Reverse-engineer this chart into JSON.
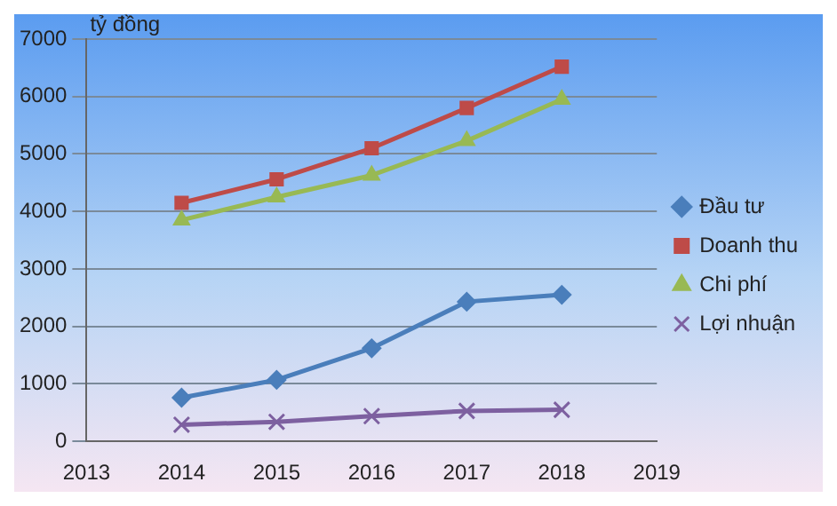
{
  "chart_data": {
    "type": "line",
    "ylabel": "tỷ đồng",
    "x": [
      2014,
      2015,
      2016,
      2017,
      2018
    ],
    "xlim": [
      2013,
      2019
    ],
    "xticks": [
      2013,
      2014,
      2015,
      2016,
      2017,
      2018,
      2019
    ],
    "ylim": [
      0,
      7000
    ],
    "yticks": [
      0,
      1000,
      2000,
      3000,
      4000,
      5000,
      6000,
      7000
    ],
    "grid": "y",
    "legend": "right",
    "line_style": "solid",
    "series": [
      {
        "name": "Đầu tư",
        "color": "#4a7ebb",
        "marker": "diamond",
        "values": [
          760,
          1070,
          1620,
          2430,
          2550
        ]
      },
      {
        "name": "Doanh thu",
        "color": "#be4b48",
        "marker": "square",
        "values": [
          4150,
          4560,
          5100,
          5800,
          6520
        ]
      },
      {
        "name": "Chi phí",
        "color": "#98b954",
        "marker": "triangle",
        "values": [
          3850,
          4250,
          4630,
          5230,
          5950
        ]
      },
      {
        "name": "Lợi nhuận",
        "color": "#7d60a0",
        "marker": "cross",
        "values": [
          290,
          340,
          440,
          530,
          550
        ]
      }
    ]
  }
}
